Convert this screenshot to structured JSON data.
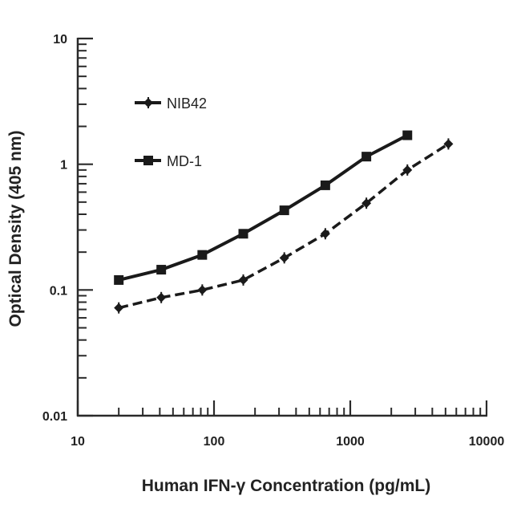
{
  "chart_data": {
    "type": "line",
    "title": "",
    "xlabel": "Human IFN-γ Concentration (pg/mL)",
    "ylabel": "Optical Density (405 nm)",
    "xscale": "log",
    "yscale": "log",
    "xlim": [
      10,
      10000
    ],
    "ylim": [
      0.01,
      10
    ],
    "x_ticks": [
      "10",
      "100",
      "1000",
      "10000"
    ],
    "y_ticks": [
      "0.01",
      "0.1",
      "1",
      "10"
    ],
    "grid": false,
    "legend_position": "upper-left",
    "series": [
      {
        "name": "NIB42",
        "line_style": "dashed",
        "marker": "diamond-cross",
        "x": [
          20,
          41,
          82,
          164,
          328,
          656,
          1313,
          2625,
          5250
        ],
        "y": [
          0.072,
          0.087,
          0.1,
          0.12,
          0.18,
          0.28,
          0.49,
          0.9,
          1.45
        ]
      },
      {
        "name": "MD-1",
        "line_style": "solid",
        "marker": "filled-square",
        "x": [
          20,
          41,
          82,
          164,
          328,
          656,
          1313,
          2625
        ],
        "y": [
          0.12,
          0.145,
          0.19,
          0.28,
          0.43,
          0.68,
          1.15,
          1.7
        ]
      }
    ]
  },
  "legend": {
    "items": [
      {
        "label": "NIB42"
      },
      {
        "label": "MD-1"
      }
    ]
  },
  "axes": {
    "x_title": "Human IFN-γ Concentration (pg/mL)",
    "y_title": "Optical Density (405 nm)",
    "x_tick_labels": [
      "10",
      "100",
      "1000",
      "10000"
    ],
    "y_tick_labels": [
      "0.01",
      "0.1",
      "1",
      "10"
    ]
  },
  "colors": {
    "line": "#1a1a1a",
    "axis": "#2a2a2a",
    "background": "#ffffff"
  }
}
